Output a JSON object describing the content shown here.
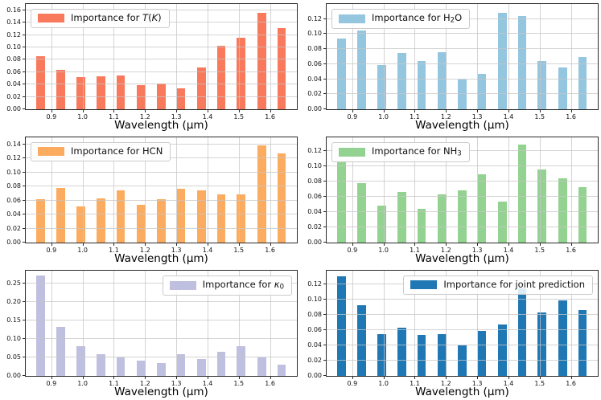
{
  "figure": {
    "xlabel": "Wavelength (μm)",
    "background_color": "#ffffff",
    "grid_color": "#c6c6c6",
    "spine_color": "#2a2a2a",
    "grid": true,
    "xlim": [
      0.818,
      1.686
    ],
    "xticks": [
      0.9,
      1.0,
      1.1,
      1.2,
      1.3,
      1.4,
      1.5,
      1.6
    ],
    "bar_width_um": 0.028,
    "wavelengths": [
      0.865,
      0.929,
      0.994,
      1.058,
      1.122,
      1.187,
      1.251,
      1.315,
      1.38,
      1.444,
      1.508,
      1.573,
      1.637
    ]
  },
  "chart_data": [
    {
      "type": "bar",
      "label": "Importance for T(K)",
      "legend_segments": [
        {
          "text": "Importance for "
        },
        {
          "text": "T",
          "italic": true
        },
        {
          "text": "("
        },
        {
          "text": "K",
          "italic": true
        },
        {
          "text": ")"
        }
      ],
      "legend_loc": "upper-left",
      "color": "#f8795c",
      "x": [
        0.865,
        0.929,
        0.994,
        1.058,
        1.122,
        1.187,
        1.251,
        1.315,
        1.38,
        1.444,
        1.508,
        1.573,
        1.637
      ],
      "values": [
        0.086,
        0.064,
        0.052,
        0.053,
        0.055,
        0.039,
        0.041,
        0.034,
        0.068,
        0.102,
        0.116,
        0.156,
        0.131
      ],
      "ylim": [
        0,
        0.17
      ],
      "yticks": [
        0.0,
        0.02,
        0.04,
        0.06,
        0.08,
        0.1,
        0.12,
        0.14,
        0.16
      ],
      "xlabel": "Wavelength (μm)"
    },
    {
      "type": "bar",
      "label": "Importance for H₂O",
      "legend_segments": [
        {
          "text": "Importance for H"
        },
        {
          "text": "2",
          "sub": true
        },
        {
          "text": "O"
        }
      ],
      "legend_loc": "upper-left",
      "color": "#94c6df",
      "x": [
        0.865,
        0.929,
        0.994,
        1.058,
        1.122,
        1.187,
        1.251,
        1.315,
        1.38,
        1.444,
        1.508,
        1.573,
        1.637
      ],
      "values": [
        0.094,
        0.105,
        0.059,
        0.075,
        0.064,
        0.076,
        0.04,
        0.047,
        0.128,
        0.124,
        0.064,
        0.056,
        0.07
      ],
      "ylim": [
        0,
        0.14
      ],
      "yticks": [
        0.0,
        0.02,
        0.04,
        0.06,
        0.08,
        0.1,
        0.12
      ],
      "xlabel": "Wavelength (μm)"
    },
    {
      "type": "bar",
      "label": "Importance for HCN",
      "legend_segments": [
        {
          "text": "Importance for HCN"
        }
      ],
      "legend_loc": "upper-left",
      "color": "#fbac61",
      "x": [
        0.865,
        0.929,
        0.994,
        1.058,
        1.122,
        1.187,
        1.251,
        1.315,
        1.38,
        1.444,
        1.508,
        1.573,
        1.637
      ],
      "values": [
        0.062,
        0.078,
        0.051,
        0.063,
        0.074,
        0.054,
        0.062,
        0.077,
        0.075,
        0.069,
        0.069,
        0.139,
        0.127
      ],
      "ylim": [
        0,
        0.15
      ],
      "yticks": [
        0.0,
        0.02,
        0.04,
        0.06,
        0.08,
        0.1,
        0.12,
        0.14
      ],
      "xlabel": "Wavelength (μm)"
    },
    {
      "type": "bar",
      "label": "Importance for NH₃",
      "legend_segments": [
        {
          "text": "Importance for NH"
        },
        {
          "text": "3",
          "sub": true
        }
      ],
      "legend_loc": "upper-left",
      "color": "#94d291",
      "x": [
        0.865,
        0.929,
        0.994,
        1.058,
        1.122,
        1.187,
        1.251,
        1.315,
        1.38,
        1.444,
        1.508,
        1.573,
        1.637
      ],
      "values": [
        0.105,
        0.078,
        0.048,
        0.066,
        0.044,
        0.063,
        0.068,
        0.09,
        0.054,
        0.129,
        0.096,
        0.084,
        0.073
      ],
      "ylim": [
        0,
        0.138
      ],
      "yticks": [
        0.0,
        0.02,
        0.04,
        0.06,
        0.08,
        0.1,
        0.12
      ],
      "xlabel": "Wavelength (μm)"
    },
    {
      "type": "bar",
      "label": "Importance for κ₀",
      "legend_segments": [
        {
          "text": "Importance for "
        },
        {
          "text": "κ",
          "italic": true
        },
        {
          "text": "0",
          "sub": true
        }
      ],
      "legend_loc": "upper-right",
      "color": "#bfbfdf",
      "x": [
        0.865,
        0.929,
        0.994,
        1.058,
        1.122,
        1.187,
        1.251,
        1.315,
        1.38,
        1.444,
        1.508,
        1.573,
        1.637
      ],
      "values": [
        0.272,
        0.133,
        0.08,
        0.059,
        0.051,
        0.042,
        0.034,
        0.059,
        0.045,
        0.066,
        0.08,
        0.05,
        0.031
      ],
      "ylim": [
        0,
        0.285
      ],
      "yticks": [
        0.0,
        0.05,
        0.1,
        0.15,
        0.2,
        0.25
      ],
      "xlabel": "Wavelength (μm)"
    },
    {
      "type": "bar",
      "label": "Importance for joint prediction",
      "legend_segments": [
        {
          "text": "Importance for joint prediction"
        }
      ],
      "legend_loc": "upper-right",
      "color": "#1f77b4",
      "x": [
        0.865,
        0.929,
        0.994,
        1.058,
        1.122,
        1.187,
        1.251,
        1.315,
        1.38,
        1.444,
        1.508,
        1.573,
        1.637
      ],
      "values": [
        0.131,
        0.093,
        0.055,
        0.063,
        0.054,
        0.055,
        0.04,
        0.059,
        0.067,
        0.115,
        0.083,
        0.099,
        0.086
      ],
      "ylim": [
        0,
        0.138
      ],
      "yticks": [
        0.0,
        0.02,
        0.04,
        0.06,
        0.08,
        0.1,
        0.12
      ],
      "xlabel": "Wavelength (μm)"
    }
  ]
}
